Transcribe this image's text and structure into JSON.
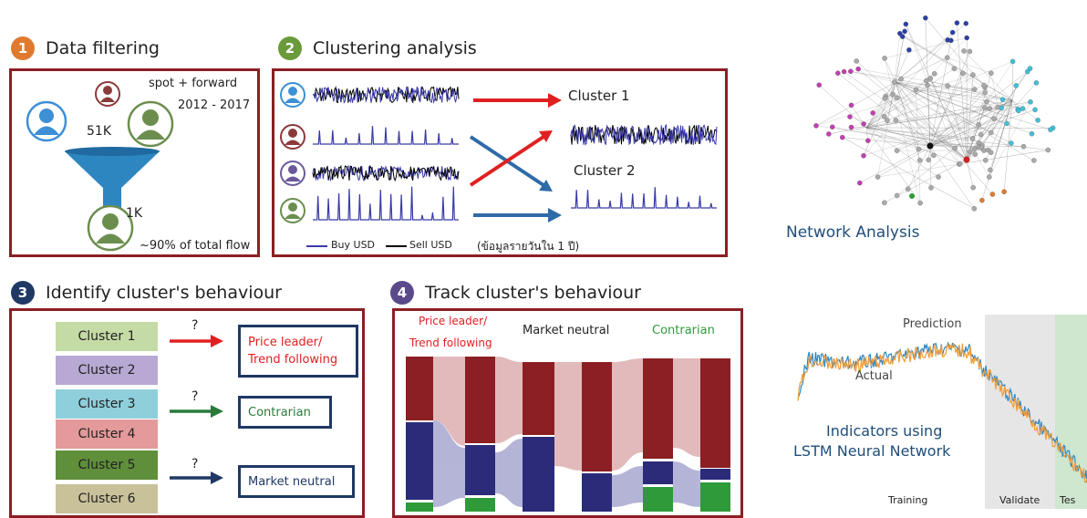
{
  "steps": [
    {
      "num": "1",
      "title": "Data filtering",
      "color": "#e07a2e"
    },
    {
      "num": "2",
      "title": "Clustering analysis",
      "color": "#6a9a3a"
    },
    {
      "num": "3",
      "title": "Identify cluster's behaviour",
      "color": "#1f3864"
    },
    {
      "num": "4",
      "title": "Track cluster's behaviour",
      "color": "#5b4a8b"
    }
  ],
  "filtering": {
    "spot_forward": "spot + forward",
    "years": "2012 - 2017",
    "count_before": "51K",
    "count_after": "1K",
    "share": "~90% of total flow"
  },
  "clustering": {
    "cluster1": "Cluster 1",
    "cluster2": "Cluster 2",
    "legend_buy": "Buy USD",
    "legend_sell": "Sell USD",
    "note": "(ข้อมูลรายวันใน 1 ปี)"
  },
  "identify": {
    "clusters": [
      {
        "label": "Cluster 1",
        "color": "#c5dba5"
      },
      {
        "label": "Cluster 2",
        "color": "#b8a8d4"
      },
      {
        "label": "Cluster 3",
        "color": "#8fcfdc"
      },
      {
        "label": "Cluster 4",
        "color": "#e49a9a"
      },
      {
        "label": "Cluster 5",
        "color": "#5f8f3a"
      },
      {
        "label": "Cluster 6",
        "color": "#c9c19a"
      }
    ],
    "question": "?",
    "behaviours": {
      "price_leader_1": "Price leader/",
      "price_leader_2": "Trend following",
      "contrarian": "Contrarian",
      "neutral": "Market neutral"
    }
  },
  "track": {
    "price_leader_1": "Price leader/",
    "price_leader_2": "Trend following",
    "neutral": "Market neutral",
    "contrarian": "Contrarian"
  },
  "network": {
    "title": "Network Analysis"
  },
  "lstm": {
    "prediction": "Prediction",
    "actual": "Actual",
    "title_1": "Indicators using",
    "title_2": "LSTM Neural Network",
    "training": "Training",
    "validate": "Validate",
    "test": "Tes"
  }
}
